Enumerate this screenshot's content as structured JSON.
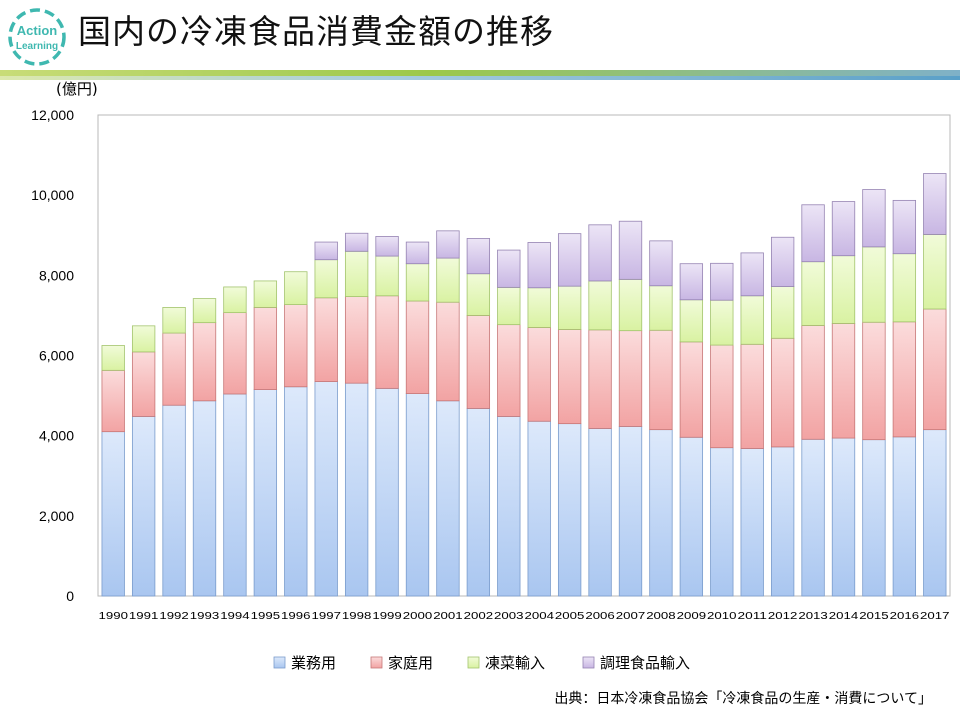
{
  "header": {
    "title": "国内の冷凍食品消費金額の推移",
    "logo_line1": "Action",
    "logo_line2": "Learning"
  },
  "colors": {
    "series": [
      [
        "#a9c6f0",
        "#dde9fb",
        "#7a9ccc"
      ],
      [
        "#f2a3a3",
        "#fbdcdc",
        "#c77878"
      ],
      [
        "#d9f2a2",
        "#f1fbd9",
        "#a3c46e"
      ],
      [
        "#c8b6e3",
        "#ece5f6",
        "#9583b2"
      ]
    ],
    "logo": "#3fb8b0"
  },
  "chart_data": {
    "type": "bar",
    "stacked": true,
    "title": "国内の冷凍食品消費金額の推移",
    "ylabel": "(億円)",
    "xlabel": "",
    "ylim": [
      0,
      12000
    ],
    "yticks": [
      0,
      2000,
      4000,
      6000,
      8000,
      10000,
      12000
    ],
    "ytick_labels": [
      "0",
      "2,000",
      "4,000",
      "6,000",
      "8,000",
      "10,000",
      "12,000"
    ],
    "grid": false,
    "legend_position": "bottom",
    "categories": [
      "1990",
      "1991",
      "1992",
      "1993",
      "1994",
      "1995",
      "1996",
      "1997",
      "1998",
      "1999",
      "2000",
      "2001",
      "2002",
      "2003",
      "2004",
      "2005",
      "2006",
      "2007",
      "2008",
      "2009",
      "2010",
      "2011",
      "2012",
      "2013",
      "2014",
      "2015",
      "2016",
      "2017"
    ],
    "series": [
      {
        "name": "業務用",
        "values": [
          4100,
          4480,
          4760,
          4870,
          5040,
          5150,
          5220,
          5350,
          5310,
          5180,
          5050,
          4870,
          4680,
          4480,
          4360,
          4300,
          4180,
          4230,
          4150,
          3960,
          3700,
          3680,
          3720,
          3910,
          3940,
          3900,
          3970,
          4150
        ]
      },
      {
        "name": "家庭用",
        "values": [
          1530,
          1610,
          1800,
          1950,
          2030,
          2050,
          2050,
          2090,
          2160,
          2310,
          2310,
          2460,
          2320,
          2290,
          2340,
          2350,
          2460,
          2390,
          2480,
          2380,
          2560,
          2600,
          2710,
          2840,
          2860,
          2930,
          2870,
          3010
        ]
      },
      {
        "name": "凍菜輸入",
        "values": [
          620,
          650,
          640,
          600,
          640,
          660,
          820,
          950,
          1130,
          990,
          930,
          1100,
          1040,
          930,
          990,
          1080,
          1220,
          1280,
          1110,
          1050,
          1120,
          1210,
          1290,
          1590,
          1690,
          1880,
          1700,
          1860
        ]
      },
      {
        "name": "調理食品輸入",
        "values": [
          0,
          0,
          0,
          0,
          0,
          0,
          0,
          440,
          450,
          490,
          540,
          680,
          880,
          930,
          1130,
          1310,
          1400,
          1450,
          1120,
          900,
          920,
          1070,
          1230,
          1420,
          1350,
          1430,
          1330,
          1520
        ]
      }
    ]
  },
  "source": "出典：日本冷凍食品協会「冷凍食品の生産・消費について」"
}
